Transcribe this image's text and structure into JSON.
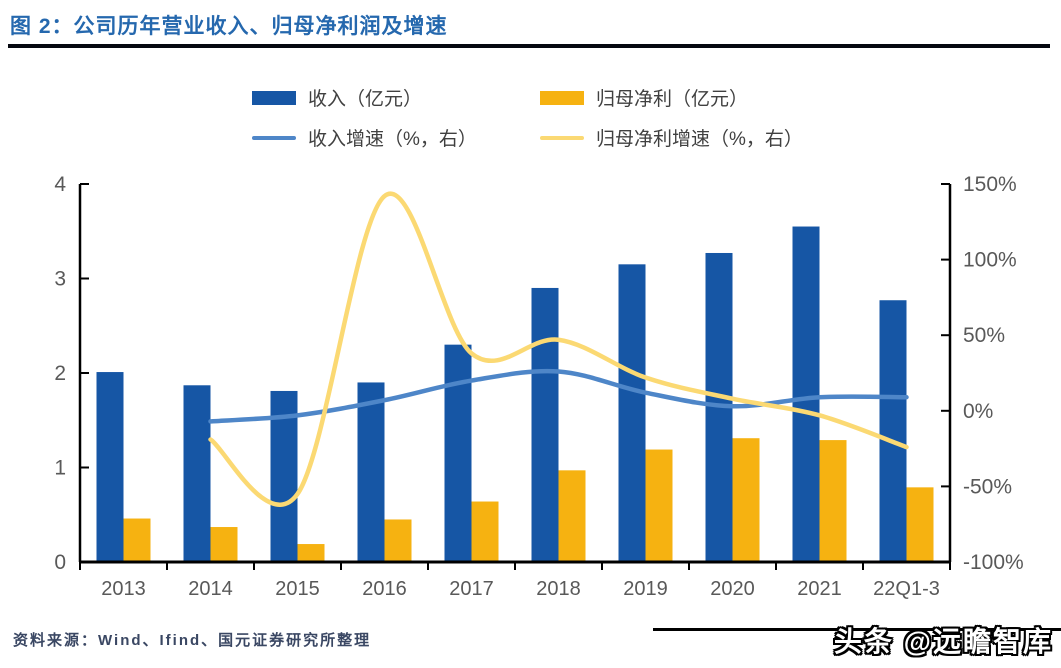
{
  "page": {
    "title": "图 2：公司历年营业收入、归母净利润及增速",
    "source": "资料来源：Wind、Ifind、国元证券研究所整理",
    "watermark": "头条 @远瞻智库"
  },
  "colors": {
    "title_text": "#2568AE",
    "revenue_bar": "#1656A5",
    "profit_bar": "#F6B211",
    "revenue_growth_line": "#4E86C8",
    "profit_growth_line": "#FBD973",
    "axis_line": "#000000",
    "axis_label": "#595959",
    "source_text": "#3A4763"
  },
  "legend": {
    "items": [
      {
        "label": "收入（亿元）",
        "swatch": "bar",
        "color": "#1656A5"
      },
      {
        "label": "归母净利（亿元）",
        "swatch": "bar",
        "color": "#F6B211"
      },
      {
        "label": "收入增速（%，右）",
        "swatch": "line",
        "color": "#4E86C8"
      },
      {
        "label": "归母净利增速（%，右）",
        "swatch": "line",
        "color": "#FBD973"
      }
    ]
  },
  "chart_data": {
    "type": "bar",
    "subtype": "combo-bar-line-dual-axis",
    "title": "公司历年营业收入、归母净利润及增速",
    "categories": [
      "2013",
      "2014",
      "2015",
      "2016",
      "2017",
      "2018",
      "2019",
      "2020",
      "2021",
      "22Q1-3"
    ],
    "series": [
      {
        "name": "收入（亿元）",
        "type": "bar",
        "axis": "left",
        "color": "#1656A5",
        "values": [
          2.01,
          1.87,
          1.81,
          1.9,
          2.3,
          2.9,
          3.15,
          3.27,
          3.55,
          2.77
        ]
      },
      {
        "name": "归母净利（亿元）",
        "type": "bar",
        "axis": "left",
        "color": "#F6B211",
        "values": [
          0.46,
          0.37,
          0.19,
          0.45,
          0.64,
          0.97,
          1.19,
          1.31,
          1.29,
          0.79
        ]
      },
      {
        "name": "收入增速（%，右）",
        "type": "line",
        "axis": "right",
        "color": "#4E86C8",
        "values": [
          null,
          -7,
          -3,
          7,
          20,
          26,
          12,
          3,
          9,
          9
        ]
      },
      {
        "name": "归母净利增速（%，右）",
        "type": "line",
        "axis": "right",
        "color": "#FBD973",
        "values": [
          null,
          -19,
          -55,
          142,
          38,
          47,
          22,
          8,
          -3,
          -24
        ]
      }
    ],
    "left_axis": {
      "min": 0,
      "max": 4,
      "ticks": [
        0,
        1,
        2,
        3,
        4
      ]
    },
    "right_axis": {
      "min": -100,
      "max": 150,
      "tick_step": 50,
      "tick_labels": [
        "150%",
        "100%",
        "50%",
        "0%",
        "-50%",
        "-100%"
      ]
    },
    "grid": false,
    "legend_position": "top",
    "line_smoothing": true
  }
}
